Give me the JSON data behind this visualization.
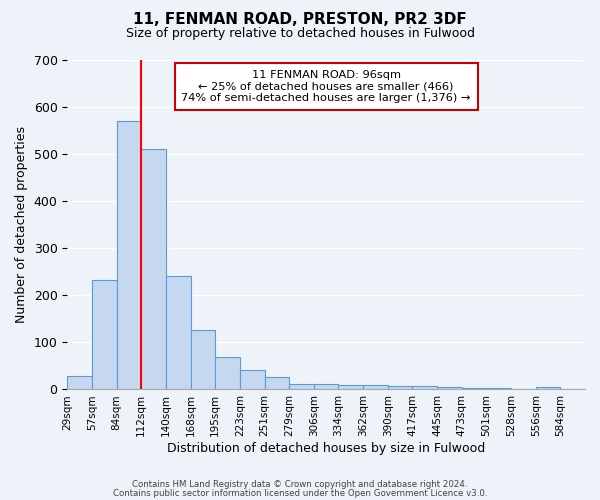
{
  "title": "11, FENMAN ROAD, PRESTON, PR2 3DF",
  "subtitle": "Size of property relative to detached houses in Fulwood",
  "xlabel": "Distribution of detached houses by size in Fulwood",
  "ylabel": "Number of detached properties",
  "bar_labels": [
    "29sqm",
    "57sqm",
    "84sqm",
    "112sqm",
    "140sqm",
    "168sqm",
    "195sqm",
    "223sqm",
    "251sqm",
    "279sqm",
    "306sqm",
    "334sqm",
    "362sqm",
    "390sqm",
    "417sqm",
    "445sqm",
    "473sqm",
    "501sqm",
    "528sqm",
    "556sqm",
    "584sqm"
  ],
  "bar_heights": [
    28,
    232,
    570,
    510,
    242,
    127,
    70,
    42,
    27,
    12,
    12,
    10,
    10,
    8,
    8,
    5,
    3,
    3,
    2,
    5,
    2
  ],
  "bar_color": "#c5d8f0",
  "bar_edge_color": "#5b9bd5",
  "red_line_index": 2,
  "annotation_title": "11 FENMAN ROAD: 96sqm",
  "annotation_line1": "← 25% of detached houses are smaller (466)",
  "annotation_line2": "74% of semi-detached houses are larger (1,376) →",
  "annotation_box_color": "#ffffff",
  "annotation_box_edge": "#cc0000",
  "ylim": [
    0,
    700
  ],
  "yticks": [
    0,
    100,
    200,
    300,
    400,
    500,
    600,
    700
  ],
  "footer1": "Contains HM Land Registry data © Crown copyright and database right 2024.",
  "footer2": "Contains public sector information licensed under the Open Government Licence v3.0.",
  "bg_color": "#eef2f9"
}
